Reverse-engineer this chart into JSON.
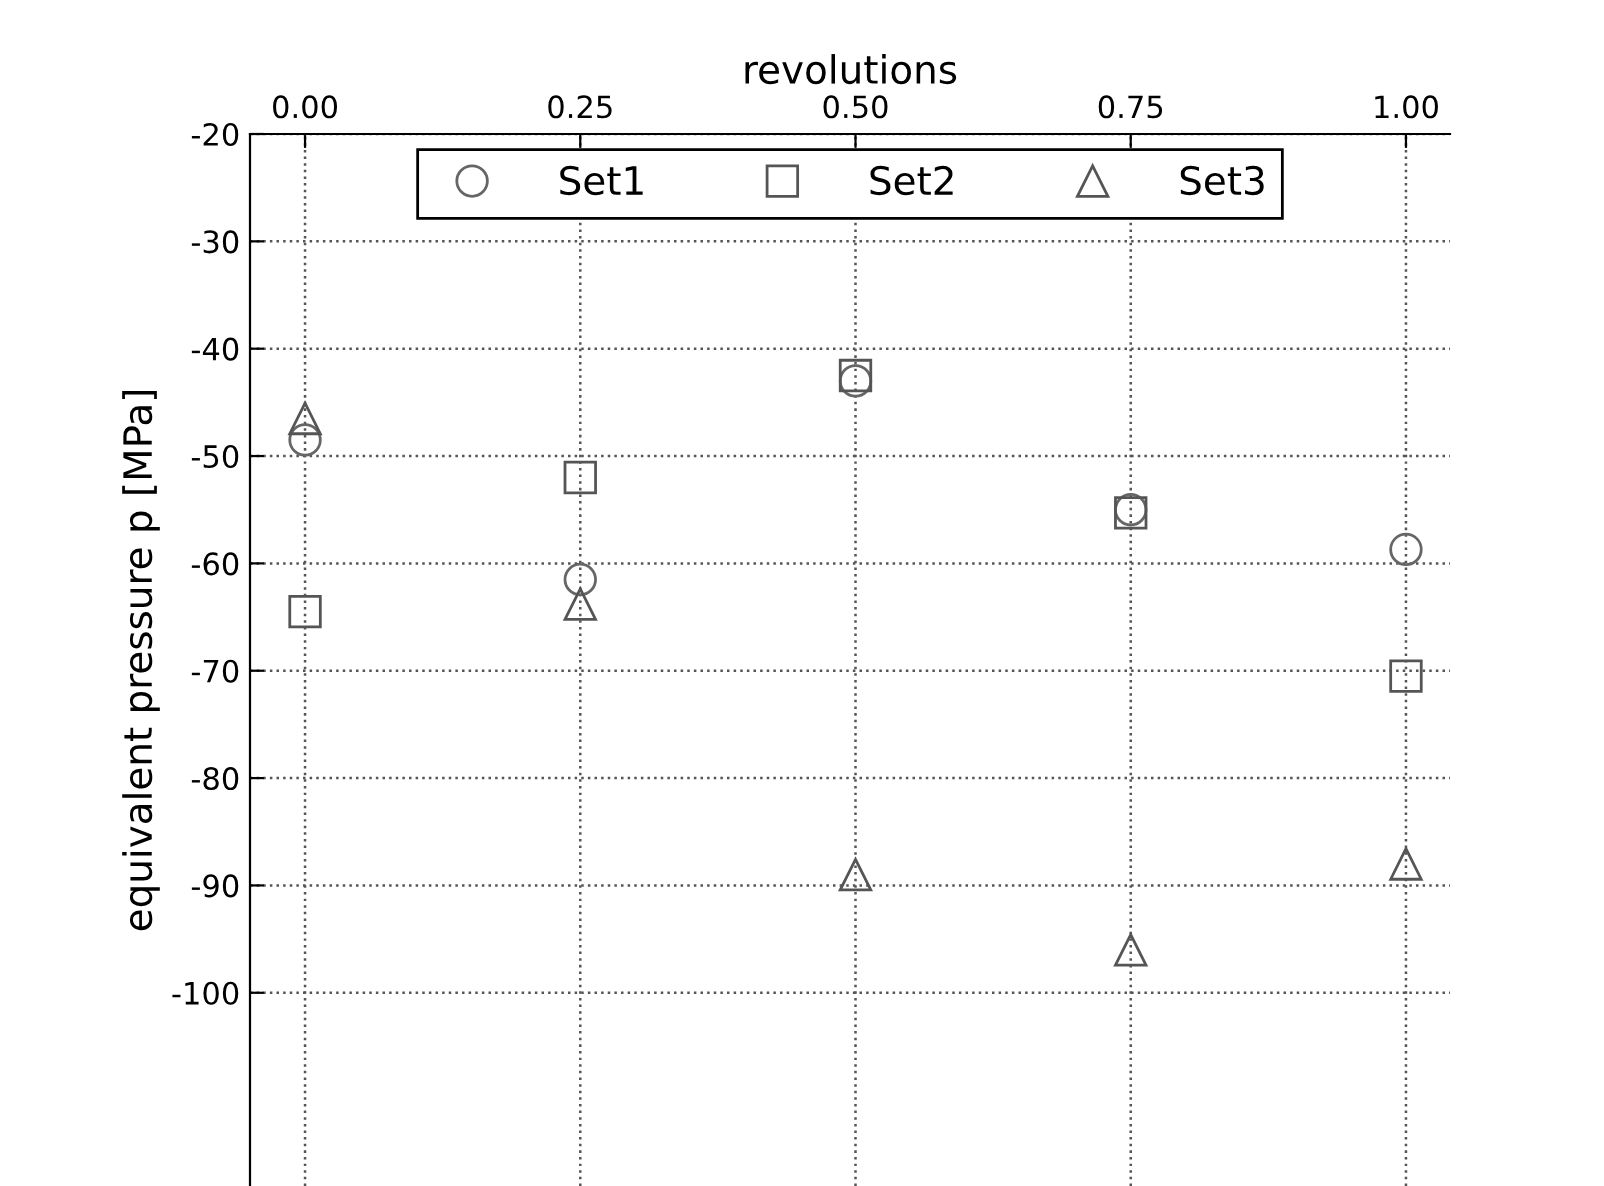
{
  "chart_data": {
    "type": "scatter",
    "xlabel": "revolutions",
    "ylabel": "equivalent pressure p [MPa]",
    "x": [
      0,
      0.25,
      0.5,
      0.75,
      1
    ],
    "series": [
      {
        "name": "Set1",
        "color": "#666666",
        "marker": "circle",
        "values": [
          -48.5,
          -61.5,
          -43,
          -55,
          -58.7
        ]
      },
      {
        "name": "Set2",
        "color": "#555555",
        "marker": "square",
        "values": [
          -64.5,
          -52,
          -42.5,
          -55.3,
          -70.5
        ]
      },
      {
        "name": "Set3",
        "color": "#555555",
        "marker": "triangle",
        "values": [
          -46.5,
          -63.8,
          -89,
          -96,
          -88
        ]
      }
    ],
    "xlim": [
      -0.05,
      1.04
    ],
    "ylim": [
      -118,
      -20
    ],
    "xticks": [
      {
        "value": 0,
        "label": "0.00"
      },
      {
        "value": 0.25,
        "label": "0.25"
      },
      {
        "value": 0.5,
        "label": "0.50"
      },
      {
        "value": 0.75,
        "label": "0.75"
      },
      {
        "value": 1,
        "label": "1.00"
      }
    ],
    "yticks": [
      -20,
      -30,
      -40,
      -50,
      -60,
      -70,
      -80,
      -90,
      -100
    ],
    "grid": true,
    "legend": "top"
  }
}
